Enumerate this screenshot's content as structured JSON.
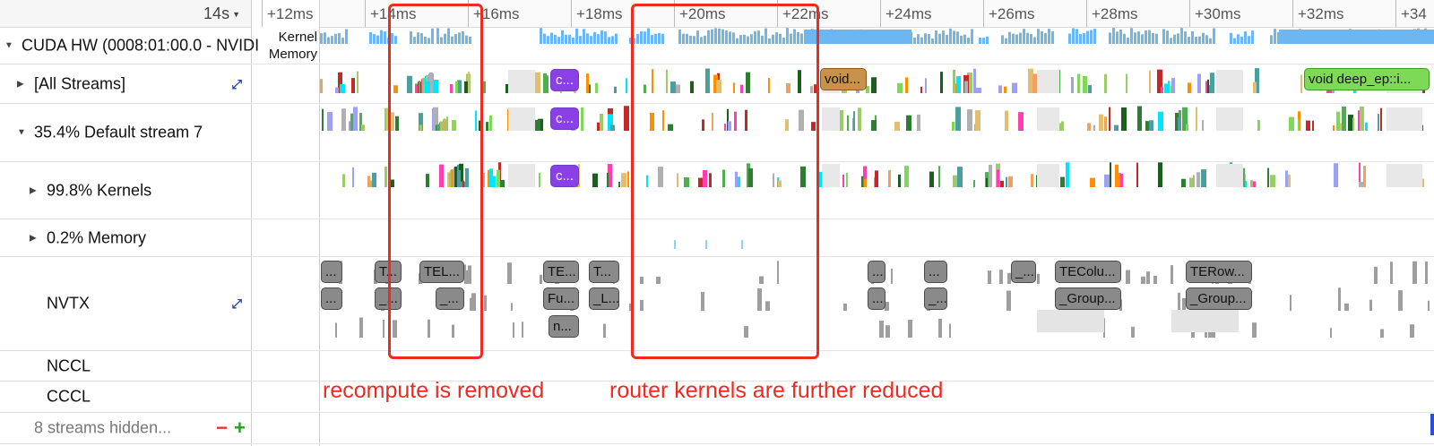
{
  "header": {
    "zoom_label": "14s"
  },
  "ruler": {
    "unit": "ms",
    "ticks": [
      {
        "ms": 12,
        "label": "+12ms"
      },
      {
        "ms": 14,
        "label": "+14ms"
      },
      {
        "ms": 16,
        "label": "+16ms"
      },
      {
        "ms": 18,
        "label": "+18ms"
      },
      {
        "ms": 20,
        "label": "+20ms"
      },
      {
        "ms": 22,
        "label": "+22ms"
      },
      {
        "ms": 24,
        "label": "+24ms"
      },
      {
        "ms": 26,
        "label": "+26ms"
      },
      {
        "ms": 28,
        "label": "+28ms"
      },
      {
        "ms": 30,
        "label": "+30ms"
      },
      {
        "ms": 32,
        "label": "+32ms"
      },
      {
        "ms": 34,
        "label": "+34"
      }
    ]
  },
  "tree": {
    "cuda_hw": "CUDA HW (0008:01:00.0 - NVIDI",
    "cuda_hw_sub_kernel": "Kernel",
    "cuda_hw_sub_memory": "Memory",
    "all_streams": "[All Streams]",
    "default_stream": "35.4% Default stream 7",
    "kernels": "99.8% Kernels",
    "memory": "0.2% Memory",
    "nvtx": "NVTX",
    "nccl": "NCCL",
    "cccl": "CCCL",
    "hidden": "8 streams hidden...",
    "minus": "−",
    "plus": "+"
  },
  "kernel_pills": {
    "c1": "c...",
    "c2": "c...",
    "c3": "c...",
    "void1": "void...",
    "void2": "void deep_ep::i..."
  },
  "nvtx_pills": {
    "a1": "...",
    "a2": "T...",
    "a3": "TEL...",
    "a4": "TE...",
    "a5": "T...",
    "a6": "...",
    "a7": "...",
    "a8": "_...",
    "a9": "TEColu...",
    "a10": "TERow...",
    "b1": "...",
    "b2": "_...",
    "b3": "_...",
    "b4": "Fu...",
    "b5": "_L...",
    "b6": "...",
    "b7": "_...",
    "b8": "_Group...",
    "b9": "_Group...",
    "c1": "n..."
  },
  "annotations": {
    "left": "recompute is removed",
    "right": "router kernels are further reduced"
  },
  "colors": {
    "annotation": "#ef2a20",
    "memory_bar": "#6db6f0",
    "kernel_purple": "#8b3fe6",
    "kernel_orange": "#c8924a",
    "kernel_green": "#7ed957",
    "nvtx_gray": "#8a8a8a"
  }
}
